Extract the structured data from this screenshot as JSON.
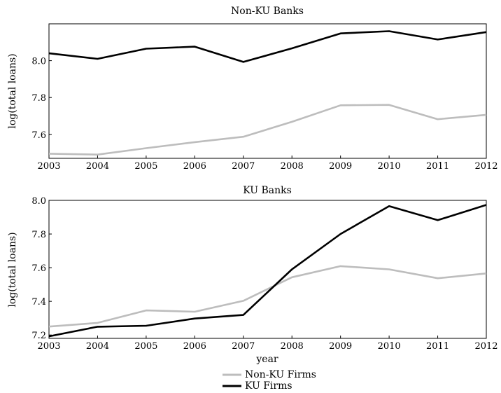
{
  "chart_data": [
    {
      "type": "line",
      "title": "Non-KU Banks",
      "xlabel": "",
      "ylabel": "log(total loans)",
      "x": [
        2003,
        2004,
        2005,
        2006,
        2007,
        2008,
        2009,
        2010,
        2011,
        2012
      ],
      "xlim": [
        2003,
        2012
      ],
      "ylim": [
        7.47,
        8.2
      ],
      "yticks": [
        7.6,
        7.8,
        8.0
      ],
      "ytick_labels": [
        "7.6",
        "7.8",
        "8.0"
      ],
      "series": [
        {
          "name": "Non-KU Firms",
          "color": "#bdbdbd",
          "values": [
            7.495,
            7.49,
            7.525,
            7.558,
            7.587,
            7.668,
            7.758,
            7.76,
            7.682,
            7.706
          ]
        },
        {
          "name": "KU Firms",
          "color": "#000000",
          "values": [
            8.04,
            8.01,
            8.065,
            8.076,
            7.993,
            8.067,
            8.148,
            8.16,
            8.115,
            8.155
          ]
        }
      ]
    },
    {
      "type": "line",
      "title": "KU Banks",
      "xlabel": "year",
      "ylabel": "log(total loans)",
      "x": [
        2003,
        2004,
        2005,
        2006,
        2007,
        2008,
        2009,
        2010,
        2011,
        2012
      ],
      "xlim": [
        2003,
        2012
      ],
      "ylim": [
        7.18,
        8.0
      ],
      "yticks": [
        7.2,
        7.4,
        7.6,
        7.8,
        8.0
      ],
      "ytick_labels": [
        "7.2",
        "7.4",
        "7.6",
        "7.8",
        "8.0"
      ],
      "series": [
        {
          "name": "Non-KU Firms",
          "color": "#bdbdbd",
          "values": [
            7.25,
            7.272,
            7.346,
            7.338,
            7.403,
            7.543,
            7.609,
            7.59,
            7.537,
            7.566
          ]
        },
        {
          "name": "KU Firms",
          "color": "#000000",
          "values": [
            7.192,
            7.249,
            7.255,
            7.298,
            7.319,
            7.59,
            7.8,
            7.966,
            7.882,
            7.973
          ]
        }
      ]
    }
  ],
  "legend": {
    "position": "bottom-center",
    "entries": [
      {
        "label": "Non-KU Firms",
        "color": "#bdbdbd"
      },
      {
        "label": "KU Firms",
        "color": "#000000"
      }
    ]
  }
}
